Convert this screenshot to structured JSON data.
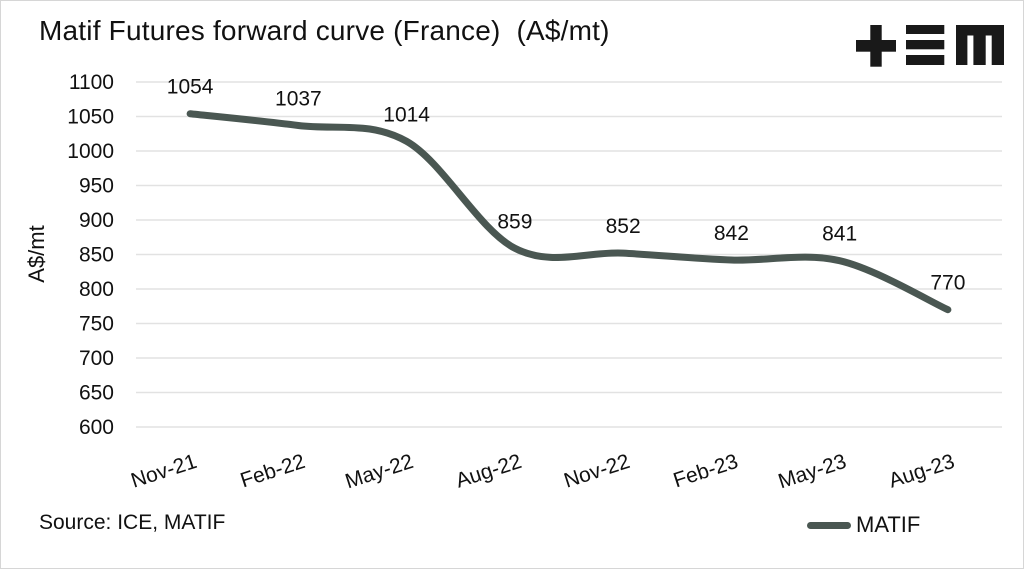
{
  "title": "Matif Futures forward curve (France)  (A$/mt)",
  "logo": {
    "name": "tem-logo"
  },
  "chart_data": {
    "type": "line",
    "categories": [
      "Nov-21",
      "Feb-22",
      "May-22",
      "Aug-22",
      "Nov-22",
      "Feb-23",
      "May-23",
      "Aug-23"
    ],
    "series": [
      {
        "name": "MATIF",
        "values": [
          1054,
          1037,
          1014,
          859,
          852,
          842,
          841,
          770
        ]
      }
    ],
    "title": "Matif Futures forward curve (France)  (A$/mt)",
    "xlabel": "",
    "ylabel": "A$/mt",
    "ylim": [
      600,
      1100
    ],
    "ytick_step": 50,
    "grid": "horizontal",
    "legend_position": "bottom-right",
    "smooth": true,
    "data_labels": true,
    "line_color": "#4a5752",
    "gridline_color": "#e2e2e2",
    "text_color": "#111111"
  },
  "source": "Source: ICE, MATIF",
  "legend": {
    "label": "MATIF"
  }
}
